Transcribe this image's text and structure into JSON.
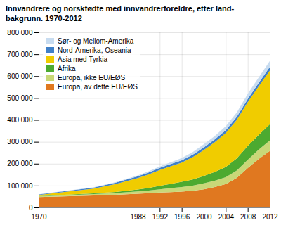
{
  "chart_data": {
    "type": "area",
    "title": "Innvandrere og norskfødte med innvandrerforeldre, etter land-\nbakgrunn. 1970-2012",
    "stacked": true,
    "grid": true,
    "legend": "upper left",
    "x": [
      1970,
      1980,
      1984,
      1988,
      1990,
      1992,
      1994,
      1996,
      1998,
      2000,
      2002,
      2004,
      2006,
      2008,
      2010,
      2012
    ],
    "series": [
      {
        "name": "Europa, av dette EU/EØS",
        "color": "#E07820",
        "values": [
          47000,
          55000,
          58000,
          63000,
          65000,
          68000,
          70000,
          72000,
          76000,
          83000,
          93000,
          107000,
          135000,
          180000,
          222000,
          258000
        ]
      },
      {
        "name": "Europa, ikke EU/EØS",
        "color": "#C8D878",
        "values": [
          4000,
          6000,
          8000,
          10000,
          12000,
          15000,
          18000,
          21000,
          24000,
          27000,
          29000,
          31000,
          34000,
          38000,
          42000,
          48000
        ]
      },
      {
        "name": "Afrika",
        "color": "#4CAA30",
        "values": [
          1000,
          3000,
          5000,
          9000,
          12000,
          16000,
          20000,
          24000,
          28000,
          34000,
          40000,
          47000,
          55000,
          63000,
          68000,
          74000
        ]
      },
      {
        "name": "Asia med Tyrkia",
        "color": "#F0CC00",
        "values": [
          5000,
          22000,
          36000,
          52000,
          62000,
          72000,
          80000,
          88000,
          102000,
          118000,
          136000,
          155000,
          176000,
          200000,
          222000,
          245000
        ]
      },
      {
        "name": "Nord-Amerika, Oseania",
        "color": "#4080C8",
        "values": [
          2500,
          5000,
          6500,
          8000,
          9000,
          9500,
          10000,
          10500,
          11000,
          12000,
          12500,
          13000,
          13500,
          14500,
          15500,
          17000
        ]
      },
      {
        "name": "Sør- og Mellom-Amerika",
        "color": "#C8DCF0",
        "values": [
          500,
          1500,
          2500,
          4000,
          5500,
          7000,
          8500,
          10000,
          12000,
          14000,
          16000,
          18000,
          20000,
          23000,
          25000,
          27000
        ]
      }
    ],
    "xlim": [
      1970,
      2012
    ],
    "xticks": [
      1970,
      1988,
      1992,
      1996,
      2000,
      2004,
      2008,
      2012
    ],
    "ylim": [
      0,
      800000
    ],
    "yticks": [
      0,
      {
        "value": 100000,
        "label": "100 000"
      },
      {
        "value": 200000,
        "label": "200 000"
      },
      {
        "value": 300000,
        "label": "300 000"
      },
      {
        "value": 400000,
        "label": "400 000"
      },
      {
        "value": 500000,
        "label": "500 000"
      },
      {
        "value": 600000,
        "label": "600 000"
      },
      {
        "value": 700000,
        "label": "700 000"
      },
      {
        "value": 800000,
        "label": "800 000"
      }
    ]
  }
}
